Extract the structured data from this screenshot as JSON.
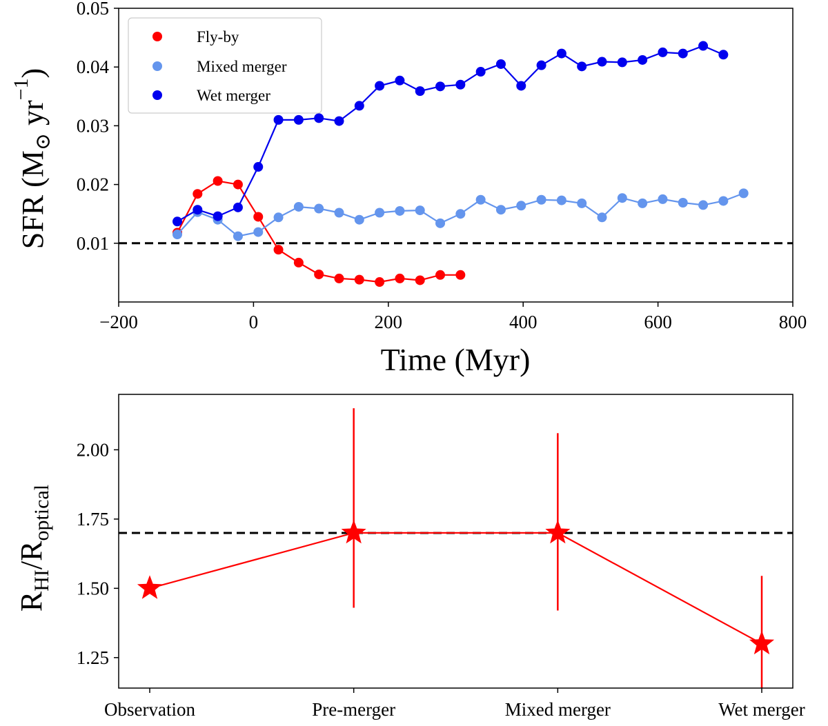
{
  "chart_data": [
    {
      "type": "line",
      "xlabel": "Time (Myr)",
      "ylabel": {
        "main": "SFR (M",
        "sub": "⊙",
        "mid": " yr",
        "sup": "−1",
        "end": ")"
      },
      "xlim": [
        -200,
        800
      ],
      "ylim": [
        0,
        0.05
      ],
      "xticks": [
        -200,
        0,
        200,
        400,
        600,
        800
      ],
      "xtick_labels": [
        "−200",
        "0",
        "200",
        "400",
        "600",
        "800"
      ],
      "yticks": [
        0.01,
        0.02,
        0.03,
        0.04,
        0.05
      ],
      "ytick_labels": [
        "0.01",
        "0.02",
        "0.03",
        "0.04",
        "0.05"
      ],
      "reference_line": {
        "y": 0.01,
        "style": "dashed",
        "color": "#000000"
      },
      "legend": {
        "position": "top-left"
      },
      "grid": false,
      "series": [
        {
          "name": "Fly-by",
          "color": "#ff0000",
          "x": [
            -113,
            -83,
            -53,
            -23,
            7,
            37,
            67,
            97,
            127,
            157,
            187,
            217,
            247,
            277,
            307
          ],
          "y": [
            0.0118,
            0.0184,
            0.0206,
            0.02,
            0.0145,
            0.0089,
            0.0067,
            0.0047,
            0.004,
            0.0038,
            0.0034,
            0.004,
            0.0037,
            0.0046,
            0.0046
          ]
        },
        {
          "name": "Mixed merger",
          "color": "#6495ed",
          "x": [
            -113,
            -83,
            -53,
            -23,
            7,
            37,
            67,
            97,
            127,
            157,
            187,
            217,
            247,
            277,
            307,
            337,
            367,
            397,
            427,
            457,
            487,
            517,
            547,
            577,
            607,
            637,
            667,
            697,
            727
          ],
          "y": [
            0.0115,
            0.0153,
            0.014,
            0.0112,
            0.0119,
            0.0144,
            0.0162,
            0.0159,
            0.0152,
            0.014,
            0.0152,
            0.0155,
            0.0156,
            0.0134,
            0.015,
            0.0174,
            0.0157,
            0.0164,
            0.0174,
            0.0173,
            0.0168,
            0.0144,
            0.0177,
            0.0168,
            0.0175,
            0.0169,
            0.0165,
            0.0172,
            0.0185
          ]
        },
        {
          "name": "Wet merger",
          "color": "#0000ee",
          "x": [
            -113,
            -83,
            -53,
            -23,
            7,
            37,
            67,
            97,
            127,
            157,
            187,
            217,
            247,
            277,
            307,
            337,
            367,
            397,
            427,
            457,
            487,
            517,
            547,
            577,
            607,
            637,
            667,
            697
          ],
          "y": [
            0.0137,
            0.0157,
            0.0146,
            0.0161,
            0.023,
            0.031,
            0.031,
            0.0313,
            0.0308,
            0.0334,
            0.0368,
            0.0377,
            0.0359,
            0.0367,
            0.037,
            0.0392,
            0.0405,
            0.0368,
            0.0403,
            0.0423,
            0.0401,
            0.0409,
            0.0408,
            0.0412,
            0.0425,
            0.0423,
            0.0436,
            0.0421
          ]
        }
      ]
    },
    {
      "type": "line",
      "ylabel": {
        "main": "R",
        "sub1": "HI",
        "mid": "/R",
        "sub2": "optical"
      },
      "categories": [
        "Observation",
        "Pre-merger",
        "Mixed merger",
        "Wet merger"
      ],
      "ylim": [
        1.14,
        2.2
      ],
      "yticks": [
        1.25,
        1.5,
        1.75,
        2.0
      ],
      "ytick_labels": [
        "1.25",
        "1.50",
        "1.75",
        "2.00"
      ],
      "reference_line": {
        "y": 1.7,
        "style": "dashed",
        "color": "#000000"
      },
      "grid": false,
      "series": [
        {
          "marker": "star",
          "color": "#ff0000",
          "values": [
            1.5,
            1.7,
            1.7,
            1.3
          ],
          "error_low": [
            1.5,
            1.43,
            1.42,
            1.14
          ],
          "error_high": [
            1.5,
            2.15,
            2.06,
            1.545
          ]
        }
      ]
    }
  ]
}
